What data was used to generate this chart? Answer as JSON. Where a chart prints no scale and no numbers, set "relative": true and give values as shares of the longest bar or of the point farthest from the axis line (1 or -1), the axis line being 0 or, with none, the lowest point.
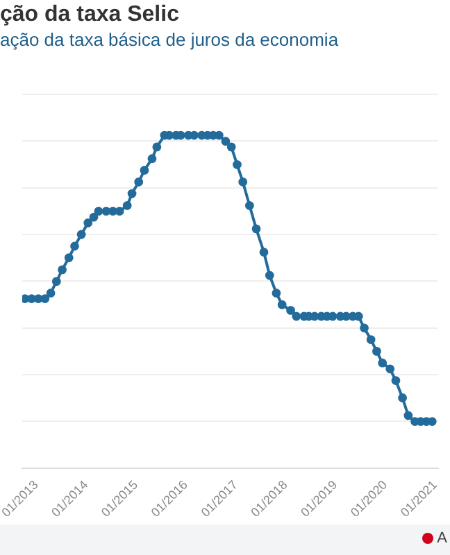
{
  "chart_data": {
    "type": "line",
    "title": "ção da taxa Selic",
    "subtitle": "ação da taxa básica de juros da economia",
    "relative": true,
    "grid": "y",
    "marker": "circle",
    "line_style": "solid",
    "legend": false,
    "x": [
      "2012-10-10",
      "2012-11-28",
      "2013-01-16",
      "2013-03-06",
      "2013-04-17",
      "2013-05-29",
      "2013-07-10",
      "2013-08-28",
      "2013-10-09",
      "2013-11-27",
      "2014-01-15",
      "2014-02-26",
      "2014-04-02",
      "2014-05-28",
      "2014-07-16",
      "2014-09-03",
      "2014-10-29",
      "2014-12-03",
      "2015-01-21",
      "2015-03-04",
      "2015-04-29",
      "2015-06-03",
      "2015-07-29",
      "2015-09-02",
      "2015-10-21",
      "2015-11-25",
      "2016-01-20",
      "2016-03-02",
      "2016-04-27",
      "2016-06-08",
      "2016-07-20",
      "2016-08-31",
      "2016-10-19",
      "2016-11-30",
      "2017-01-11",
      "2017-02-22",
      "2017-04-12",
      "2017-05-31",
      "2017-07-26",
      "2017-09-06",
      "2017-10-25",
      "2017-12-06",
      "2018-02-07",
      "2018-03-21",
      "2018-05-16",
      "2018-06-20",
      "2018-08-01",
      "2018-09-19",
      "2018-10-31",
      "2018-12-12",
      "2019-02-06",
      "2019-03-20",
      "2019-05-08",
      "2019-06-19",
      "2019-07-31",
      "2019-09-18",
      "2019-10-30",
      "2019-12-11",
      "2020-02-05",
      "2020-03-18",
      "2020-05-06",
      "2020-06-17",
      "2020-08-05",
      "2020-09-16",
      "2020-10-28",
      "2020-12-09"
    ],
    "xlim": [
      "2012-09-20",
      "2021-01-20"
    ],
    "xticks": [
      {
        "value": "2013-01-01",
        "label": "01/2013"
      },
      {
        "value": "2014-01-01",
        "label": "01/2014"
      },
      {
        "value": "2015-01-01",
        "label": "01/2015"
      },
      {
        "value": "2016-01-01",
        "label": "01/2016"
      },
      {
        "value": "2017-01-01",
        "label": "01/2017"
      },
      {
        "value": "2018-01-01",
        "label": "01/2018"
      },
      {
        "value": "2019-01-01",
        "label": "01/2019"
      },
      {
        "value": "2020-01-01",
        "label": "01/2020"
      },
      {
        "value": "2021-01-01",
        "label": "01/2021"
      }
    ],
    "series": [
      {
        "color": "#236b9b",
        "values": [
          0.509,
          0.509,
          0.509,
          0.509,
          0.526,
          0.561,
          0.596,
          0.632,
          0.667,
          0.702,
          0.737,
          0.754,
          0.772,
          0.772,
          0.772,
          0.772,
          0.789,
          0.825,
          0.86,
          0.895,
          0.93,
          0.965,
          1,
          1,
          1,
          1,
          1,
          1,
          1,
          1,
          1,
          1,
          0.982,
          0.965,
          0.912,
          0.86,
          0.789,
          0.719,
          0.649,
          0.579,
          0.526,
          0.491,
          0.474,
          0.456,
          0.456,
          0.456,
          0.456,
          0.456,
          0.456,
          0.456,
          0.456,
          0.456,
          0.456,
          0.456,
          0.421,
          0.386,
          0.351,
          0.316,
          0.298,
          0.263,
          0.211,
          0.158,
          0.14,
          0.14,
          0.14,
          0.14
        ]
      }
    ],
    "annotations": [
      "A"
    ]
  }
}
